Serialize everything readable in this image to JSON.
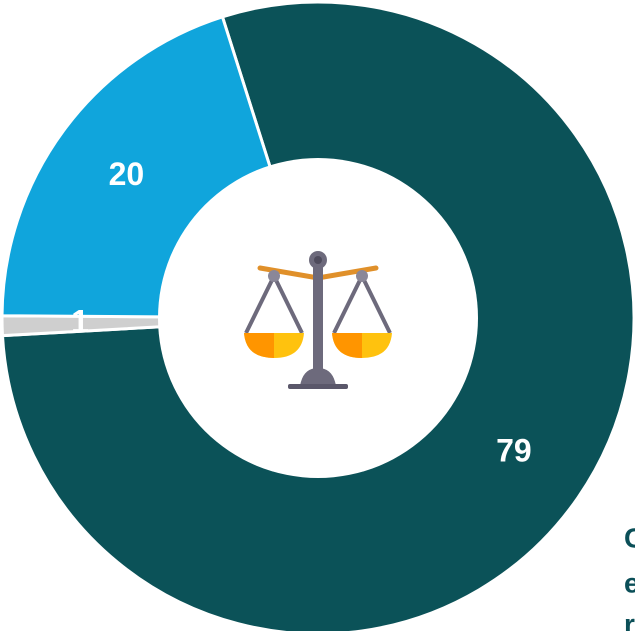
{
  "chart_data": {
    "type": "pie",
    "values": [
      79,
      1,
      20
    ],
    "colors": [
      "#0b5258",
      "#cfcfcf",
      "#10a5dc"
    ],
    "annotations": [
      "C",
      "e",
      "r"
    ]
  }
}
